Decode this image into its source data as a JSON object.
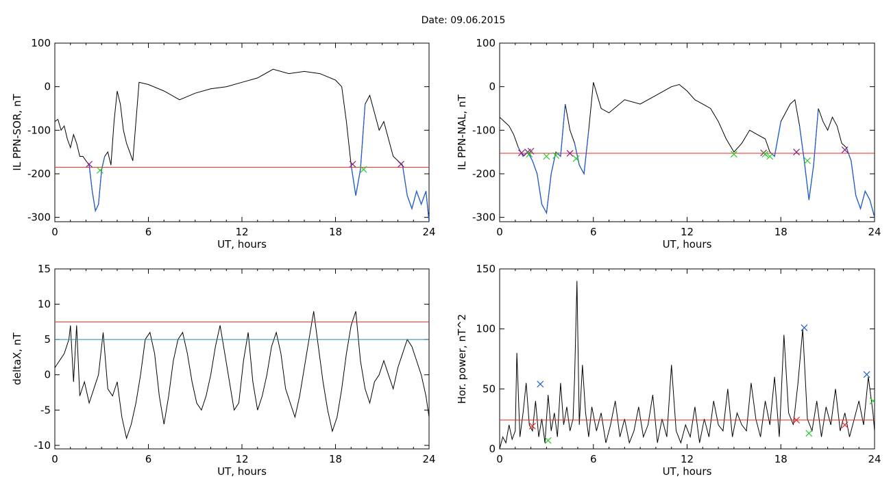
{
  "figure": {
    "title": "Date:  09.06.2015"
  },
  "colors": {
    "trace": "#000000",
    "threshold": "#e8251f",
    "below": "#1f5fd0",
    "cyan": "#1f8aa8",
    "green": "#22cc22",
    "purple": "#8a1f7a"
  },
  "chart_data": [
    {
      "type": "line",
      "xlabel": "UT, hours",
      "ylabel": "IL PPN-SOR, nT",
      "xlim": [
        0,
        24
      ],
      "ylim": [
        -310,
        100
      ],
      "xticks": [
        0,
        6,
        12,
        18,
        24
      ],
      "yticks": [
        -300,
        -200,
        -100,
        0,
        100
      ],
      "series": [
        {
          "x": [
            0,
            0.2,
            0.4,
            0.6,
            0.8,
            1.0,
            1.2,
            1.4,
            1.6,
            1.8,
            2.0,
            2.2,
            2.4,
            2.6,
            2.8,
            3.0,
            3.2,
            3.4,
            3.6,
            3.8,
            4.0,
            4.2,
            4.4,
            4.6,
            4.8,
            5.0,
            5.4,
            6,
            7,
            8,
            9,
            10,
            11,
            12,
            13,
            14,
            15,
            16,
            17,
            18,
            18.4,
            18.7,
            19.0,
            19.3,
            19.6,
            19.9,
            20.2,
            20.5,
            20.8,
            21.1,
            21.4,
            21.7,
            22.0,
            22.3,
            22.6,
            22.9,
            23.2,
            23.5,
            23.8,
            24.0
          ],
          "y": [
            -80,
            -75,
            -100,
            -90,
            -120,
            -140,
            -110,
            -130,
            -160,
            -160,
            -170,
            -180,
            -240,
            -285,
            -270,
            -190,
            -160,
            -150,
            -180,
            -80,
            -10,
            -40,
            -100,
            -130,
            -150,
            -170,
            10,
            5,
            -10,
            -30,
            -15,
            -5,
            0,
            10,
            20,
            40,
            30,
            35,
            30,
            15,
            0,
            -80,
            -180,
            -250,
            -190,
            -40,
            -20,
            -60,
            -100,
            -80,
            -120,
            -160,
            -170,
            -180,
            -250,
            -280,
            -240,
            -270,
            -240,
            -310
          ]
        }
      ],
      "threshold": -185,
      "red_markers": [
        {
          "x": 2.2,
          "y": -178
        },
        {
          "x": 19.1,
          "y": -178
        },
        {
          "x": 22.2,
          "y": -178
        }
      ],
      "green_markers": [
        {
          "x": 2.9,
          "y": -192
        },
        {
          "x": 19.8,
          "y": -190
        }
      ]
    },
    {
      "type": "line",
      "xlabel": "UT, hours",
      "ylabel": "IL PPN-NAL, nT",
      "xlim": [
        0,
        24
      ],
      "ylim": [
        -310,
        100
      ],
      "xticks": [
        0,
        6,
        12,
        18,
        24
      ],
      "yticks": [
        -300,
        -200,
        -100,
        0,
        100
      ],
      "series": [
        {
          "x": [
            0,
            0.3,
            0.6,
            0.9,
            1.2,
            1.5,
            1.8,
            2.1,
            2.4,
            2.7,
            3.0,
            3.3,
            3.6,
            3.9,
            4.2,
            4.5,
            4.8,
            5.1,
            5.4,
            5.7,
            6,
            6.5,
            7,
            8,
            9,
            10,
            11,
            11.5,
            12,
            12.5,
            13,
            13.5,
            14,
            14.5,
            15,
            15.5,
            16,
            16.5,
            17,
            17.3,
            17.6,
            18,
            18.3,
            18.6,
            18.9,
            19.2,
            19.5,
            19.8,
            20.1,
            20.4,
            20.7,
            21.0,
            21.3,
            21.6,
            21.9,
            22.2,
            22.5,
            22.8,
            23.1,
            23.4,
            23.7,
            24.0
          ],
          "y": [
            -70,
            -80,
            -90,
            -110,
            -140,
            -160,
            -150,
            -170,
            -200,
            -270,
            -290,
            -200,
            -150,
            -160,
            -40,
            -100,
            -130,
            -180,
            -200,
            -100,
            10,
            -50,
            -60,
            -30,
            -40,
            -20,
            0,
            5,
            -10,
            -30,
            -40,
            -50,
            -80,
            -120,
            -150,
            -130,
            -100,
            -110,
            -120,
            -150,
            -160,
            -80,
            -60,
            -40,
            -30,
            -90,
            -170,
            -260,
            -180,
            -50,
            -80,
            -100,
            -70,
            -90,
            -130,
            -140,
            -170,
            -250,
            -280,
            -240,
            -260,
            -300
          ]
        }
      ],
      "threshold": -153,
      "red_markers": [
        {
          "x": 1.4,
          "y": -152
        },
        {
          "x": 1.8,
          "y": -150
        },
        {
          "x": 2.0,
          "y": -148
        },
        {
          "x": 4.5,
          "y": -153
        },
        {
          "x": 16.9,
          "y": -152
        },
        {
          "x": 19.0,
          "y": -150
        },
        {
          "x": 22.1,
          "y": -145
        }
      ],
      "green_markers": [
        {
          "x": 1.9,
          "y": -155
        },
        {
          "x": 3.0,
          "y": -160
        },
        {
          "x": 3.6,
          "y": -158
        },
        {
          "x": 4.9,
          "y": -165
        },
        {
          "x": 15.0,
          "y": -155
        },
        {
          "x": 17.0,
          "y": -155
        },
        {
          "x": 17.3,
          "y": -160
        },
        {
          "x": 19.7,
          "y": -170
        }
      ]
    },
    {
      "type": "line",
      "xlabel": "UT, hours",
      "ylabel": "deltaX, nT",
      "xlim": [
        0,
        24
      ],
      "ylim": [
        -10.5,
        15
      ],
      "xticks": [
        0,
        6,
        12,
        18,
        24
      ],
      "yticks": [
        -10,
        -5,
        0,
        5,
        10,
        15
      ],
      "series": [
        {
          "x": [
            0,
            0.3,
            0.6,
            0.9,
            1.0,
            1.2,
            1.4,
            1.6,
            1.9,
            2.2,
            2.5,
            2.8,
            3.1,
            3.4,
            3.7,
            4.0,
            4.3,
            4.6,
            4.9,
            5.2,
            5.5,
            5.8,
            6.1,
            6.4,
            6.7,
            7.0,
            7.3,
            7.6,
            7.9,
            8.2,
            8.5,
            8.8,
            9.1,
            9.4,
            9.7,
            10.0,
            10.3,
            10.6,
            10.9,
            11.2,
            11.5,
            11.8,
            12.1,
            12.4,
            12.7,
            13.0,
            13.3,
            13.6,
            13.9,
            14.2,
            14.5,
            14.8,
            15.1,
            15.4,
            15.7,
            16.0,
            16.3,
            16.6,
            16.9,
            17.2,
            17.5,
            17.8,
            18.1,
            18.4,
            18.7,
            19.0,
            19.3,
            19.6,
            19.9,
            20.2,
            20.5,
            20.8,
            21.1,
            21.4,
            21.7,
            22.0,
            22.3,
            22.6,
            22.9,
            23.2,
            23.5,
            23.8,
            24.0
          ],
          "y": [
            1,
            2,
            3,
            5,
            7,
            -1,
            7,
            -3,
            -1,
            -4,
            -2,
            0,
            6,
            -2,
            -3,
            -1,
            -6,
            -9,
            -7,
            -4,
            0,
            5,
            6,
            3,
            -3,
            -7,
            -3,
            2,
            5,
            6,
            3,
            -1,
            -4,
            -5,
            -3,
            0,
            4,
            7,
            3,
            -1,
            -5,
            -4,
            2,
            6,
            -1,
            -5,
            -3,
            0,
            4,
            6,
            3,
            -2,
            -4,
            -6,
            -3,
            1,
            5,
            9,
            4,
            -1,
            -5,
            -8,
            -6,
            -2,
            3,
            7,
            9,
            2,
            -2,
            -4,
            -1,
            0,
            2,
            0,
            -2,
            1,
            3,
            5,
            4,
            2,
            0,
            -3,
            -6
          ]
        }
      ],
      "hlines": [
        {
          "y": 7.5,
          "color": "red"
        },
        {
          "y": 5.0,
          "color": "cyan"
        }
      ]
    },
    {
      "type": "line",
      "xlabel": "UT, hours",
      "ylabel": "Hor. power, nT^2",
      "xlim": [
        0,
        24
      ],
      "ylim": [
        0,
        150
      ],
      "xticks": [
        0,
        6,
        12,
        18,
        24
      ],
      "yticks": [
        0,
        50,
        100,
        150
      ],
      "series": [
        {
          "x": [
            0,
            0.2,
            0.4,
            0.6,
            0.8,
            1.0,
            1.1,
            1.3,
            1.5,
            1.7,
            1.9,
            2.1,
            2.3,
            2.5,
            2.7,
            2.9,
            3.1,
            3.3,
            3.5,
            3.7,
            3.9,
            4.1,
            4.3,
            4.5,
            4.7,
            4.8,
            4.95,
            5.1,
            5.3,
            5.5,
            5.7,
            5.9,
            6.2,
            6.5,
            6.8,
            7.1,
            7.4,
            7.7,
            8.0,
            8.3,
            8.6,
            8.9,
            9.2,
            9.5,
            9.8,
            10.1,
            10.4,
            10.7,
            11.0,
            11.3,
            11.6,
            11.9,
            12.2,
            12.5,
            12.8,
            13.1,
            13.4,
            13.7,
            14.0,
            14.3,
            14.6,
            14.9,
            15.2,
            15.5,
            15.8,
            16.1,
            16.4,
            16.7,
            17.0,
            17.3,
            17.6,
            17.9,
            18.2,
            18.5,
            18.8,
            19.1,
            19.4,
            19.7,
            20.0,
            20.3,
            20.6,
            20.9,
            21.2,
            21.5,
            21.8,
            22.1,
            22.4,
            22.7,
            23.0,
            23.3,
            23.6,
            23.9,
            24.0
          ],
          "y": [
            0,
            10,
            5,
            20,
            8,
            15,
            80,
            10,
            30,
            55,
            20,
            15,
            40,
            10,
            25,
            5,
            45,
            15,
            30,
            10,
            55,
            20,
            35,
            15,
            25,
            60,
            140,
            20,
            70,
            30,
            10,
            35,
            15,
            30,
            5,
            20,
            40,
            10,
            25,
            5,
            15,
            35,
            10,
            20,
            45,
            5,
            25,
            10,
            70,
            15,
            5,
            20,
            10,
            35,
            5,
            25,
            10,
            40,
            20,
            15,
            50,
            10,
            30,
            20,
            15,
            55,
            25,
            10,
            40,
            20,
            60,
            10,
            95,
            30,
            20,
            55,
            100,
            25,
            15,
            40,
            10,
            35,
            20,
            50,
            15,
            30,
            10,
            25,
            40,
            20,
            60,
            30,
            15
          ]
        }
      ],
      "threshold": 24,
      "cyan_markers": [
        {
          "x": 2.6,
          "y": 54
        },
        {
          "x": 19.5,
          "y": 101
        },
        {
          "x": 23.5,
          "y": 62
        }
      ],
      "red_markers": [
        {
          "x": 2.1,
          "y": 19
        },
        {
          "x": 19.0,
          "y": 24
        },
        {
          "x": 22.1,
          "y": 20
        }
      ],
      "green_markers": [
        {
          "x": 3.1,
          "y": 7
        },
        {
          "x": 19.8,
          "y": 13
        },
        {
          "x": 23.9,
          "y": 40
        }
      ]
    }
  ]
}
